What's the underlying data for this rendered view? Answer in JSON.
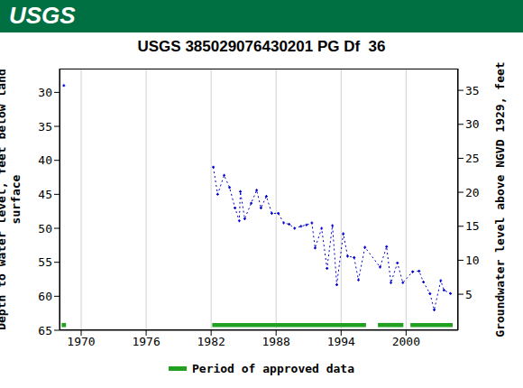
{
  "chart_data": {
    "type": "line",
    "header": "USGS",
    "title": "USGS 385029076430201 PG Df  36",
    "y_label": "Depth to water level, feet below land surface",
    "y2_label": "Groundwater level above NGVD 1929, feet",
    "x": [
      1968.4,
      1982.2,
      1982.6,
      1983.2,
      1983.7,
      1984.2,
      1984.6,
      1984.7,
      1985.1,
      1985.7,
      1986.2,
      1986.6,
      1987.1,
      1987.6,
      1988.2,
      1988.7,
      1989.2,
      1989.7,
      1990.3,
      1990.8,
      1991.3,
      1991.6,
      1992.2,
      1992.7,
      1993.2,
      1993.6,
      1994.2,
      1994.6,
      1995.2,
      1995.6,
      1996.2,
      1997.6,
      1998.2,
      1998.6,
      1999.2,
      1999.7,
      2000.6,
      2001.2,
      2001.6,
      2002.2,
      2002.6,
      2003.2,
      2003.5,
      2004.1
    ],
    "series": [
      {
        "color": "#0000cc",
        "marker": "plus",
        "line_style": "dotted",
        "values": [
          29.0,
          41.0,
          45.0,
          42.2,
          44.0,
          47.0,
          48.9,
          44.6,
          48.6,
          46.3,
          44.4,
          47.0,
          45.3,
          47.8,
          47.8,
          49.2,
          49.4,
          50.0,
          49.7,
          49.5,
          49.2,
          52.9,
          50.0,
          55.9,
          49.6,
          58.3,
          50.8,
          54.1,
          54.3,
          57.6,
          52.8,
          55.7,
          52.7,
          58.0,
          55.1,
          58.0,
          56.4,
          56.3,
          57.9,
          59.6,
          62.0,
          57.7,
          59.1,
          59.6
        ]
      }
    ],
    "approved_periods": {
      "name": "Period of approved data",
      "color": "#22a022",
      "ranges": [
        [
          1968.2,
          1968.6
        ],
        [
          1982.1,
          1996.3
        ],
        [
          1997.4,
          1999.75
        ],
        [
          2000.4,
          2004.3
        ]
      ]
    },
    "xlim": [
      1968,
      2004.8
    ],
    "xticks": [
      1970,
      1976,
      1982,
      1988,
      1994,
      2000
    ],
    "ylim": [
      65,
      26.5
    ],
    "yticks": [
      30,
      35,
      40,
      45,
      50,
      55,
      60,
      65
    ],
    "y2lim": [
      -0.3,
      38.2
    ],
    "y2ticks": [
      5,
      10,
      15,
      20,
      25,
      30,
      35
    ],
    "grid": "x"
  }
}
